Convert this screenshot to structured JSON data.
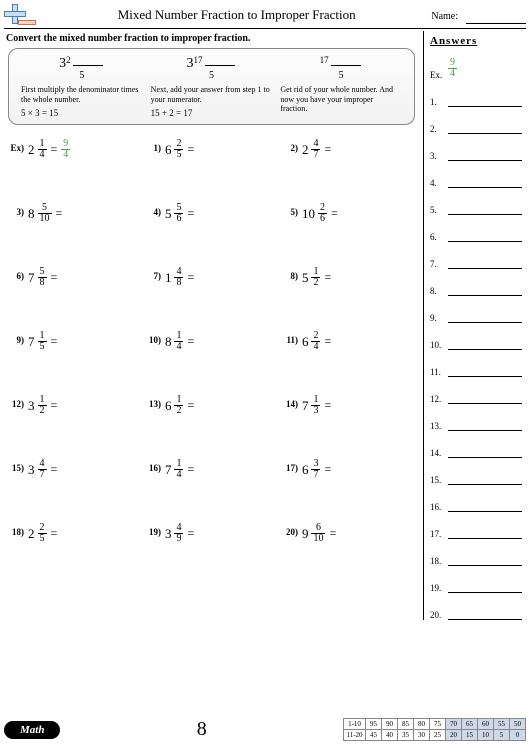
{
  "header": {
    "title": "Mixed Number Fraction to Improper Fraction",
    "name_label": "Name:"
  },
  "instruction": "Convert the mixed number fraction to improper fraction.",
  "example": {
    "col1": {
      "whole": "3",
      "sup": "2",
      "denom": "5",
      "text": "First multiply the denominator times the whole number.",
      "calc": "5 × 3 = 15"
    },
    "col2": {
      "whole": "3",
      "sup": "17",
      "denom": "5",
      "text": "Next, add your answer from step 1 to your numerator.",
      "calc": "15 + 2 = 17"
    },
    "col3": {
      "sup": "17",
      "denom": "5",
      "text": "Get rid of your whole number. And now you have your improper fraction."
    }
  },
  "problems": [
    {
      "label": "Ex)",
      "whole": "2",
      "n": "1",
      "d": "4",
      "ans_n": "9",
      "ans_d": "4"
    },
    {
      "label": "1)",
      "whole": "6",
      "n": "2",
      "d": "5"
    },
    {
      "label": "2)",
      "whole": "2",
      "n": "4",
      "d": "7"
    },
    {
      "label": "3)",
      "whole": "8",
      "n": "5",
      "d": "10"
    },
    {
      "label": "4)",
      "whole": "5",
      "n": "5",
      "d": "6"
    },
    {
      "label": "5)",
      "whole": "10",
      "n": "2",
      "d": "6"
    },
    {
      "label": "6)",
      "whole": "7",
      "n": "5",
      "d": "8"
    },
    {
      "label": "7)",
      "whole": "1",
      "n": "4",
      "d": "8"
    },
    {
      "label": "8)",
      "whole": "5",
      "n": "1",
      "d": "2"
    },
    {
      "label": "9)",
      "whole": "7",
      "n": "1",
      "d": "5"
    },
    {
      "label": "10)",
      "whole": "8",
      "n": "1",
      "d": "4"
    },
    {
      "label": "11)",
      "whole": "6",
      "n": "2",
      "d": "4"
    },
    {
      "label": "12)",
      "whole": "3",
      "n": "1",
      "d": "2"
    },
    {
      "label": "13)",
      "whole": "6",
      "n": "1",
      "d": "2"
    },
    {
      "label": "14)",
      "whole": "7",
      "n": "1",
      "d": "3"
    },
    {
      "label": "15)",
      "whole": "3",
      "n": "4",
      "d": "7"
    },
    {
      "label": "16)",
      "whole": "7",
      "n": "1",
      "d": "4"
    },
    {
      "label": "17)",
      "whole": "6",
      "n": "3",
      "d": "7"
    },
    {
      "label": "18)",
      "whole": "2",
      "n": "2",
      "d": "5"
    },
    {
      "label": "19)",
      "whole": "3",
      "n": "4",
      "d": "9"
    },
    {
      "label": "20)",
      "whole": "9",
      "n": "6",
      "d": "10"
    }
  ],
  "answers": {
    "title": "Answers",
    "ex_label": "Ex.",
    "ex_n": "9",
    "ex_d": "4",
    "rows": [
      "1.",
      "2.",
      "3.",
      "4.",
      "5.",
      "6.",
      "7.",
      "8.",
      "9.",
      "10.",
      "11.",
      "12.",
      "13.",
      "14.",
      "15.",
      "16.",
      "17.",
      "18.",
      "19.",
      "20."
    ]
  },
  "footer": {
    "math_label": "Math",
    "page_number": "8",
    "score": {
      "row1_label": "1-10",
      "row2_label": "11-20",
      "row1": [
        "95",
        "90",
        "85",
        "80",
        "75",
        "70",
        "65",
        "60",
        "55",
        "50"
      ],
      "row2": [
        "45",
        "40",
        "35",
        "30",
        "25",
        "20",
        "15",
        "10",
        "5",
        "0"
      ],
      "shaded_from": 5
    }
  }
}
